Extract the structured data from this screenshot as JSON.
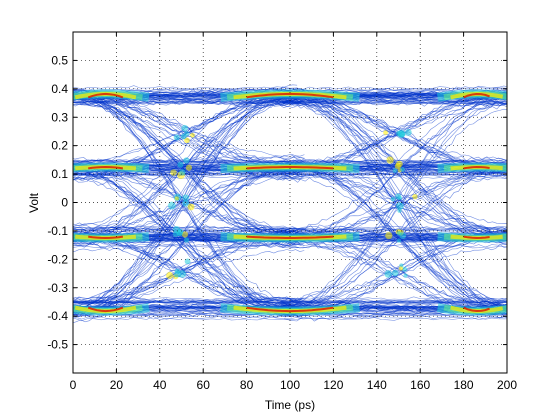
{
  "chart_data": {
    "type": "eye-diagram",
    "title": "",
    "xlabel": "Time (ps)",
    "ylabel": "Volt",
    "xlim": [
      0,
      200
    ],
    "ylim": [
      -0.6,
      0.6
    ],
    "x_ticks": [
      0,
      20,
      40,
      60,
      80,
      100,
      120,
      140,
      160,
      180,
      200
    ],
    "y_ticks": [
      -0.5,
      -0.4,
      -0.3,
      -0.2,
      -0.1,
      0,
      0.1,
      0.2,
      0.3,
      0.4,
      0.5
    ],
    "y_tick_labels": [
      "-0.5",
      "-0.4",
      "-0.3",
      "-0.2",
      "-0.1",
      "0",
      "0.1",
      "0.2",
      "0.3",
      "0.4",
      "0.5"
    ],
    "grid": true,
    "colormap": "jet",
    "signal_levels": [
      -0.37,
      -0.12,
      0.12,
      0.37
    ],
    "crossing_times_ps": [
      50,
      150
    ],
    "level_noise_v": 0.025,
    "colors": {
      "low": "#0033cc",
      "mid": "#22ccdd",
      "high": "#ffee00",
      "peak": "#dd1100"
    }
  }
}
